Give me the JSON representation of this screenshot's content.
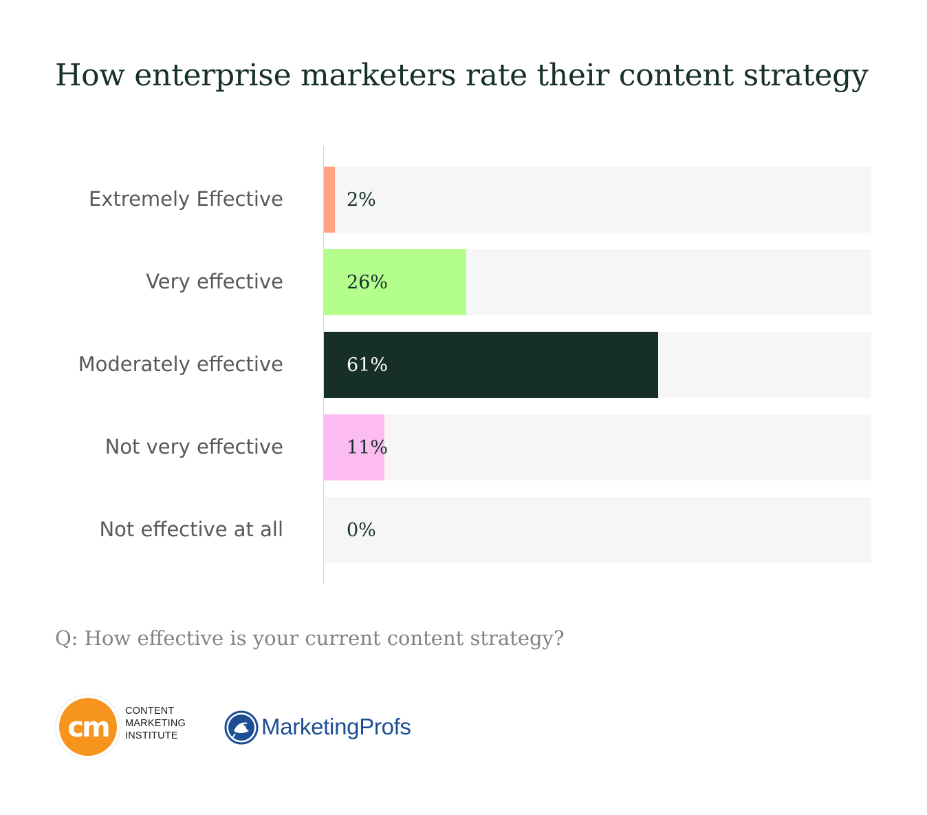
{
  "title": "How enterprise marketers rate their content strategy",
  "question": "Q: How effective is your current content strategy?",
  "logos": {
    "cmi_mark": "cm",
    "cmi_text": "CONTENT\nMARKETING\nINSTITUTE",
    "mp_text": "MarketingProfs"
  },
  "colors": {
    "title": "#17302a",
    "track": "#f6f6f6",
    "extremely": "#ffa385",
    "very": "#b4fe8e",
    "moderately": "#162f29",
    "not_very": "#fdbcf1",
    "cmi_orange": "#f7941d",
    "mp_blue": "#1d4e94"
  },
  "chart_data": {
    "type": "bar",
    "orientation": "horizontal",
    "categories": [
      "Extremely Effective",
      "Very effective",
      "Moderately effective",
      "Not very effective",
      "Not effective at all"
    ],
    "values": [
      2,
      26,
      61,
      11,
      0
    ],
    "value_labels": [
      "2%",
      "26%",
      "61%",
      "11%",
      "0%"
    ],
    "bar_colors": [
      "#ffa385",
      "#b4fe8e",
      "#162f29",
      "#fdbcf1",
      "#f6f6f6"
    ],
    "label_colors": [
      "#17302a",
      "#17302a",
      "#ffffff",
      "#17302a",
      "#17302a"
    ],
    "xlim": [
      0,
      100
    ],
    "grid": false,
    "legend": "none"
  }
}
